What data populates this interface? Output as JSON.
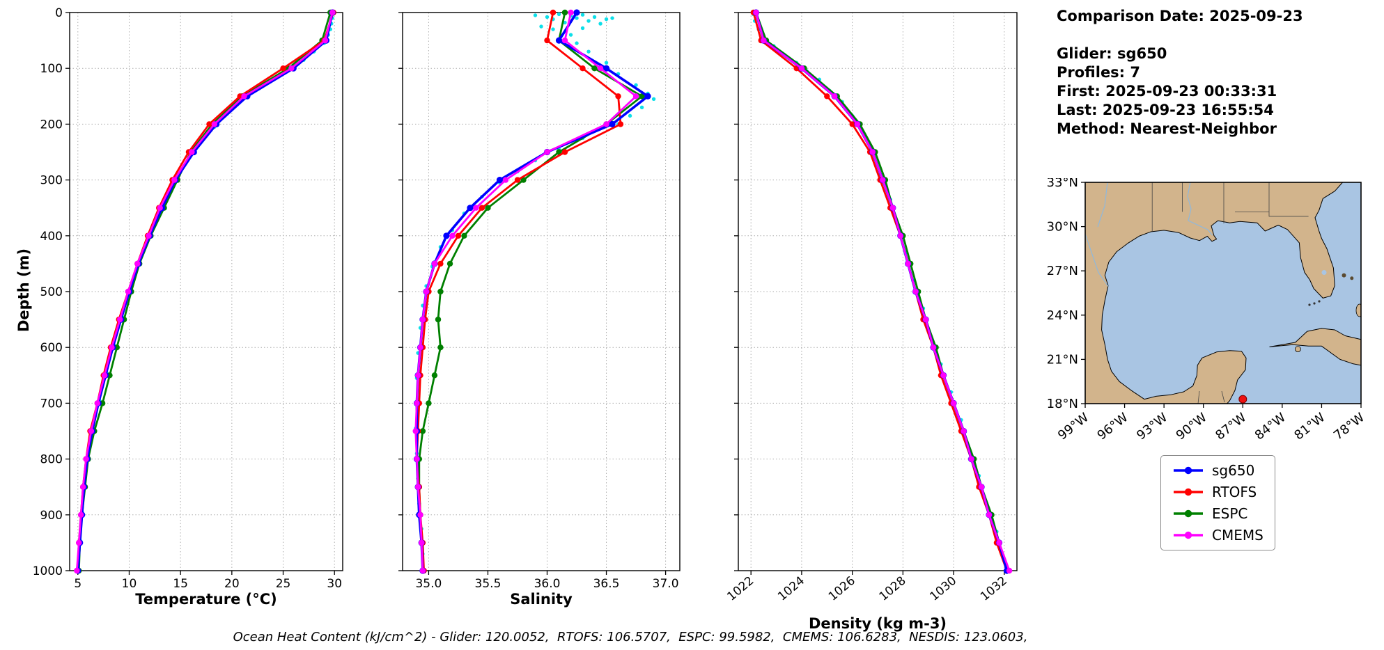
{
  "info": {
    "lines": [
      "Comparison Date: 2025-09-23",
      "",
      "Glider: sg650",
      "Profiles: 7",
      "First: 2025-09-23 00:33:31",
      "Last: 2025-09-23 16:55:54",
      "Method: Nearest-Neighbor"
    ]
  },
  "caption": "Ocean Heat Content (kJ/cm^2) - Glider: 120.0052,  RTOFS: 106.5707,  ESPC: 99.5982,  CMEMS: 106.6283,  NESDIS: 123.0603,",
  "legend": {
    "items": [
      {
        "label": "sg650",
        "color": "#0000ff"
      },
      {
        "label": "RTOFS",
        "color": "#ff0000"
      },
      {
        "label": "ESPC",
        "color": "#008000"
      },
      {
        "label": "CMEMS",
        "color": "#ff00ff"
      }
    ]
  },
  "map": {
    "lat_ticks": [
      "33°N",
      "30°N",
      "27°N",
      "24°N",
      "21°N",
      "18°N"
    ],
    "lon_ticks": [
      "99°W",
      "96°W",
      "93°W",
      "90°W",
      "87°W",
      "84°W",
      "81°W",
      "78°W"
    ],
    "land_color": "#d2b48c",
    "water_color": "#a9c5e3",
    "marker_color": "#ee1111"
  },
  "chart_data": [
    {
      "type": "line",
      "id": "temperature",
      "xlabel": "Temperature (°C)",
      "ylabel": "Depth (m)",
      "xlim": [
        4.2,
        30.8
      ],
      "xticks": [
        5,
        10,
        15,
        20,
        25,
        30
      ],
      "xtick_labels": [
        "5",
        "10",
        "15",
        "20",
        "25",
        "30"
      ],
      "ylim": [
        0,
        1000
      ],
      "yticks": [
        0,
        100,
        200,
        300,
        400,
        500,
        600,
        700,
        800,
        900,
        1000
      ],
      "depths": [
        0,
        50,
        100,
        150,
        200,
        250,
        300,
        350,
        400,
        450,
        500,
        550,
        600,
        650,
        700,
        750,
        800,
        850,
        900,
        950,
        1000
      ],
      "series": [
        {
          "name": "sg650",
          "color": "#0000ff",
          "values": [
            29.8,
            29.2,
            26.0,
            21.5,
            18.5,
            16.3,
            14.5,
            13.2,
            12.0,
            10.9,
            10.0,
            9.2,
            8.4,
            7.7,
            7.0,
            6.4,
            5.9,
            5.6,
            5.4,
            5.2,
            5.0
          ]
        },
        {
          "name": "RTOFS",
          "color": "#ff0000",
          "values": [
            29.9,
            29.0,
            25.0,
            20.8,
            17.8,
            15.8,
            14.2,
            12.9,
            11.8,
            10.8,
            9.9,
            9.0,
            8.2,
            7.5,
            6.9,
            6.2,
            5.8,
            5.5,
            5.3,
            5.1,
            5.0
          ]
        },
        {
          "name": "ESPC",
          "color": "#008000",
          "values": [
            29.6,
            28.8,
            25.5,
            21.0,
            18.1,
            16.0,
            14.7,
            13.4,
            12.1,
            11.0,
            10.2,
            9.5,
            8.8,
            8.1,
            7.4,
            6.6,
            6.0,
            5.7,
            5.4,
            5.2,
            5.1
          ]
        },
        {
          "name": "CMEMS",
          "color": "#ff00ff",
          "values": [
            29.8,
            29.1,
            25.8,
            21.2,
            18.3,
            16.1,
            14.4,
            13.0,
            11.9,
            10.8,
            9.9,
            9.1,
            8.3,
            7.6,
            6.9,
            6.3,
            5.8,
            5.5,
            5.3,
            5.1,
            4.9
          ]
        }
      ],
      "scatter": {
        "name": "glider-raw-profiles",
        "color": "#00dde8",
        "points": [
          [
            29.9,
            2
          ],
          [
            29.8,
            10
          ],
          [
            29.7,
            20
          ],
          [
            29.6,
            30
          ],
          [
            29.4,
            40
          ],
          [
            29.0,
            55
          ],
          [
            28.0,
            70
          ],
          [
            27.0,
            85
          ],
          [
            26.0,
            100
          ],
          [
            24.5,
            115
          ],
          [
            23.0,
            130
          ],
          [
            21.8,
            145
          ],
          [
            20.5,
            165
          ],
          [
            19.3,
            185
          ],
          [
            18.3,
            205
          ],
          [
            17.0,
            230
          ],
          [
            15.8,
            260
          ],
          [
            14.8,
            290
          ],
          [
            13.8,
            320
          ],
          [
            13.0,
            350
          ],
          [
            12.3,
            385
          ],
          [
            11.5,
            420
          ],
          [
            10.7,
            460
          ],
          [
            10.0,
            500
          ],
          [
            9.3,
            545
          ],
          [
            8.5,
            595
          ],
          [
            7.8,
            645
          ],
          [
            7.1,
            695
          ],
          [
            6.5,
            745
          ],
          [
            6.0,
            795
          ],
          [
            5.6,
            845
          ],
          [
            5.4,
            895
          ],
          [
            5.2,
            945
          ],
          [
            5.0,
            995
          ]
        ]
      }
    },
    {
      "type": "line",
      "id": "salinity",
      "xlabel": "Salinity",
      "xlim": [
        34.78,
        37.12
      ],
      "xticks": [
        35.0,
        35.5,
        36.0,
        36.5,
        37.0
      ],
      "xtick_labels": [
        "35.0",
        "35.5",
        "36.0",
        "36.5",
        "37.0"
      ],
      "ylim": [
        0,
        1000
      ],
      "yticks": [
        0,
        100,
        200,
        300,
        400,
        500,
        600,
        700,
        800,
        900,
        1000
      ],
      "depths": [
        0,
        50,
        100,
        150,
        200,
        250,
        300,
        350,
        400,
        450,
        500,
        550,
        600,
        650,
        700,
        750,
        800,
        850,
        900,
        950,
        1000
      ],
      "series": [
        {
          "name": "sg650",
          "color": "#0000ff",
          "values": [
            36.25,
            36.1,
            36.5,
            36.85,
            36.55,
            36.0,
            35.6,
            35.35,
            35.15,
            35.05,
            34.98,
            34.95,
            34.93,
            34.91,
            34.9,
            34.9,
            34.9,
            34.91,
            34.92,
            34.94,
            34.95
          ]
        },
        {
          "name": "RTOFS",
          "color": "#ff0000",
          "values": [
            36.05,
            36.0,
            36.3,
            36.6,
            36.62,
            36.15,
            35.75,
            35.45,
            35.25,
            35.1,
            35.0,
            34.97,
            34.95,
            34.93,
            34.92,
            34.91,
            34.9,
            34.92,
            34.93,
            34.95,
            34.96
          ]
        },
        {
          "name": "ESPC",
          "color": "#008000",
          "values": [
            36.15,
            36.1,
            36.4,
            36.8,
            36.5,
            36.1,
            35.8,
            35.5,
            35.3,
            35.18,
            35.1,
            35.08,
            35.1,
            35.05,
            35.0,
            34.95,
            34.92,
            34.92,
            34.93,
            34.94,
            34.95
          ]
        },
        {
          "name": "CMEMS",
          "color": "#ff00ff",
          "values": [
            36.2,
            36.15,
            36.45,
            36.75,
            36.5,
            36.0,
            35.65,
            35.4,
            35.2,
            35.05,
            34.98,
            34.95,
            34.93,
            34.91,
            34.9,
            34.89,
            34.9,
            34.91,
            34.93,
            34.94,
            34.95
          ]
        }
      ],
      "scatter": {
        "name": "glider-raw-profiles",
        "color": "#00dde8",
        "points": [
          [
            35.9,
            5
          ],
          [
            36.0,
            8
          ],
          [
            36.05,
            12
          ],
          [
            36.1,
            3
          ],
          [
            36.15,
            18
          ],
          [
            36.2,
            6
          ],
          [
            36.25,
            10
          ],
          [
            36.3,
            4
          ],
          [
            36.35,
            15
          ],
          [
            36.4,
            8
          ],
          [
            36.45,
            20
          ],
          [
            36.5,
            12
          ],
          [
            35.95,
            25
          ],
          [
            36.05,
            30
          ],
          [
            36.55,
            10
          ],
          [
            36.3,
            28
          ],
          [
            36.2,
            40
          ],
          [
            36.25,
            55
          ],
          [
            36.35,
            70
          ],
          [
            36.5,
            90
          ],
          [
            36.6,
            110
          ],
          [
            36.75,
            130
          ],
          [
            36.85,
            145
          ],
          [
            36.9,
            155
          ],
          [
            36.8,
            170
          ],
          [
            36.7,
            185
          ],
          [
            36.6,
            200
          ],
          [
            36.3,
            225
          ],
          [
            36.1,
            245
          ],
          [
            35.9,
            265
          ],
          [
            35.75,
            285
          ],
          [
            35.6,
            305
          ],
          [
            35.45,
            330
          ],
          [
            35.3,
            360
          ],
          [
            35.2,
            390
          ],
          [
            35.1,
            420
          ],
          [
            35.03,
            455
          ],
          [
            34.98,
            490
          ],
          [
            34.95,
            525
          ],
          [
            34.93,
            565
          ],
          [
            34.91,
            610
          ],
          [
            34.9,
            655
          ],
          [
            34.89,
            700
          ],
          [
            34.89,
            745
          ],
          [
            34.9,
            790
          ],
          [
            34.91,
            835
          ],
          [
            34.92,
            880
          ],
          [
            34.94,
            925
          ],
          [
            34.95,
            970
          ],
          [
            34.95,
            1000
          ]
        ]
      }
    },
    {
      "type": "line",
      "id": "density",
      "xlabel": "Density (kg m-3)",
      "xlim": [
        1021.5,
        1032.5
      ],
      "xticks": [
        1022,
        1024,
        1026,
        1028,
        1030,
        1032
      ],
      "xtick_labels": [
        "1022",
        "1024",
        "1026",
        "1028",
        "1030",
        "1032"
      ],
      "ylim": [
        0,
        1000
      ],
      "yticks": [
        0,
        100,
        200,
        300,
        400,
        500,
        600,
        700,
        800,
        900,
        1000
      ],
      "depths": [
        0,
        50,
        100,
        150,
        200,
        250,
        300,
        350,
        400,
        450,
        500,
        550,
        600,
        650,
        700,
        750,
        800,
        850,
        900,
        950,
        1000
      ],
      "series": [
        {
          "name": "sg650",
          "color": "#0000ff",
          "values": [
            1022.2,
            1022.5,
            1024.0,
            1025.3,
            1026.2,
            1026.8,
            1027.2,
            1027.6,
            1027.9,
            1028.2,
            1028.5,
            1028.9,
            1029.2,
            1029.6,
            1030.0,
            1030.4,
            1030.7,
            1031.1,
            1031.4,
            1031.8,
            1032.1
          ]
        },
        {
          "name": "RTOFS",
          "color": "#ff0000",
          "values": [
            1022.1,
            1022.4,
            1023.8,
            1025.0,
            1026.0,
            1026.7,
            1027.1,
            1027.5,
            1027.9,
            1028.2,
            1028.5,
            1028.8,
            1029.2,
            1029.5,
            1029.9,
            1030.3,
            1030.7,
            1031.0,
            1031.4,
            1031.7,
            1032.1
          ]
        },
        {
          "name": "ESPC",
          "color": "#008000",
          "values": [
            1022.2,
            1022.6,
            1024.1,
            1025.4,
            1026.3,
            1026.9,
            1027.3,
            1027.6,
            1028.0,
            1028.3,
            1028.6,
            1028.9,
            1029.3,
            1029.6,
            1030.0,
            1030.4,
            1030.8,
            1031.1,
            1031.5,
            1031.8,
            1032.1
          ]
        },
        {
          "name": "CMEMS",
          "color": "#ff00ff",
          "values": [
            1022.2,
            1022.5,
            1024.0,
            1025.3,
            1026.2,
            1026.8,
            1027.2,
            1027.6,
            1027.9,
            1028.2,
            1028.5,
            1028.9,
            1029.2,
            1029.6,
            1030.0,
            1030.4,
            1030.7,
            1031.1,
            1031.4,
            1031.8,
            1032.2
          ]
        }
      ],
      "scatter": {
        "name": "glider-raw-profiles",
        "color": "#00dde8",
        "points": [
          [
            1022.1,
            3
          ],
          [
            1022.15,
            15
          ],
          [
            1022.3,
            30
          ],
          [
            1022.5,
            45
          ],
          [
            1022.9,
            60
          ],
          [
            1023.3,
            75
          ],
          [
            1023.8,
            90
          ],
          [
            1024.2,
            105
          ],
          [
            1024.7,
            120
          ],
          [
            1025.1,
            140
          ],
          [
            1025.6,
            160
          ],
          [
            1026.0,
            185
          ],
          [
            1026.4,
            215
          ],
          [
            1026.8,
            250
          ],
          [
            1027.1,
            290
          ],
          [
            1027.5,
            335
          ],
          [
            1027.8,
            380
          ],
          [
            1028.1,
            430
          ],
          [
            1028.4,
            480
          ],
          [
            1028.8,
            530
          ],
          [
            1029.1,
            580
          ],
          [
            1029.5,
            630
          ],
          [
            1029.9,
            680
          ],
          [
            1030.3,
            730
          ],
          [
            1030.6,
            780
          ],
          [
            1031.0,
            830
          ],
          [
            1031.3,
            880
          ],
          [
            1031.7,
            930
          ],
          [
            1032.0,
            980
          ]
        ]
      }
    }
  ]
}
